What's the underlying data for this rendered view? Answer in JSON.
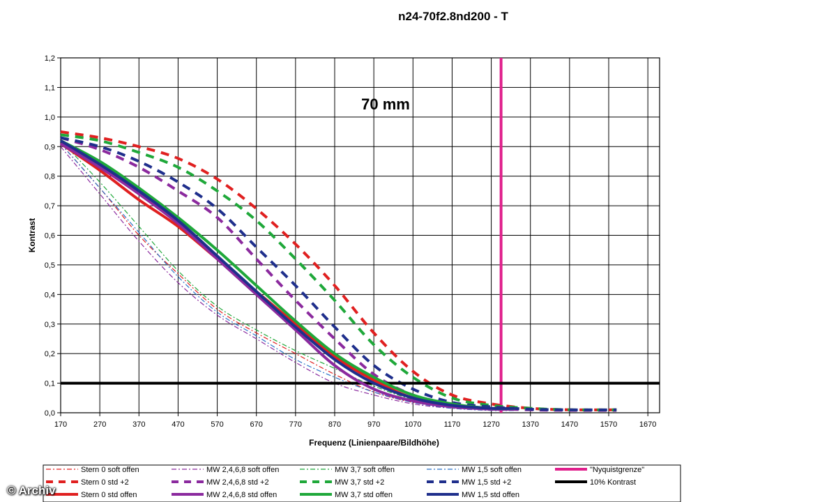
{
  "watermark": "© Archiv",
  "chart_data": {
    "type": "line",
    "title": "n24-70f2.8nd200 - T",
    "annotation": "70 mm",
    "xlabel": "Frequenz (Linienpaare/Bildhöhe)",
    "ylabel": "Kontrast",
    "xlim": [
      170,
      1700
    ],
    "ylim": [
      0,
      1.2
    ],
    "x_ticks": [
      "170",
      "270",
      "370",
      "470",
      "570",
      "670",
      "770",
      "870",
      "970",
      "1070",
      "1170",
      "1270",
      "1370",
      "1470",
      "1570",
      "1670"
    ],
    "y_ticks": [
      "0,0",
      "0,1",
      "0,2",
      "0,3",
      "0,4",
      "0,5",
      "0,6",
      "0,7",
      "0,8",
      "0,9",
      "1,0",
      "1,1",
      "1,2"
    ],
    "grid": true,
    "legend_position": "bottom",
    "series": [
      {
        "name": "Stern 0 soft offen",
        "color": "#e02020",
        "style": "dashdot",
        "width": 1.2,
        "x": [
          170,
          270,
          370,
          470,
          570,
          670,
          770,
          870,
          970,
          1070,
          1170,
          1270,
          1330
        ],
        "y": [
          0.91,
          0.76,
          0.6,
          0.47,
          0.35,
          0.27,
          0.2,
          0.13,
          0.07,
          0.035,
          0.02,
          0.01,
          0.01
        ]
      },
      {
        "name": "MW 2,4,6,8 soft offen",
        "color": "#8b2a9e",
        "style": "dashdot",
        "width": 1.2,
        "x": [
          170,
          270,
          370,
          470,
          570,
          670,
          770,
          870,
          970,
          1070,
          1170,
          1270,
          1330
        ],
        "y": [
          0.9,
          0.74,
          0.58,
          0.44,
          0.33,
          0.25,
          0.17,
          0.1,
          0.06,
          0.03,
          0.015,
          0.008,
          0.008
        ]
      },
      {
        "name": "MW 3,7 soft offen",
        "color": "#1fa83a",
        "style": "dashdot",
        "width": 1.2,
        "x": [
          170,
          270,
          370,
          470,
          570,
          670,
          770,
          870,
          970,
          1070,
          1170,
          1270,
          1330
        ],
        "y": [
          0.92,
          0.78,
          0.63,
          0.48,
          0.36,
          0.28,
          0.21,
          0.15,
          0.09,
          0.045,
          0.02,
          0.01,
          0.01
        ]
      },
      {
        "name": "MW 1,5 soft offen",
        "color": "#2a72c8",
        "style": "dashdot",
        "width": 1.2,
        "x": [
          170,
          270,
          370,
          470,
          570,
          670,
          770,
          870,
          970,
          1070,
          1170,
          1270,
          1330
        ],
        "y": [
          0.91,
          0.76,
          0.61,
          0.46,
          0.34,
          0.26,
          0.18,
          0.12,
          0.07,
          0.035,
          0.015,
          0.008,
          0.008
        ]
      },
      {
        "name": "\"Nyquistgrenze\"",
        "color": "#e0208c",
        "style": "nyquist",
        "width": 4,
        "x": [
          1295
        ],
        "y": [
          1.2
        ]
      },
      {
        "name": "Stern 0 std +2",
        "color": "#e02020",
        "style": "dash",
        "width": 4,
        "x": [
          170,
          270,
          370,
          470,
          570,
          670,
          770,
          870,
          970,
          1070,
          1170,
          1270,
          1370,
          1470,
          1590
        ],
        "y": [
          0.95,
          0.93,
          0.9,
          0.86,
          0.79,
          0.69,
          0.57,
          0.43,
          0.27,
          0.14,
          0.06,
          0.03,
          0.015,
          0.01,
          0.01
        ]
      },
      {
        "name": "MW 2,4,6,8 std +2",
        "color": "#8b2a9e",
        "style": "dash",
        "width": 4,
        "x": [
          170,
          270,
          370,
          470,
          570,
          670,
          770,
          870,
          970,
          1070,
          1170,
          1270,
          1370,
          1470,
          1590
        ],
        "y": [
          0.93,
          0.89,
          0.83,
          0.75,
          0.66,
          0.52,
          0.38,
          0.25,
          0.13,
          0.06,
          0.03,
          0.015,
          0.01,
          0.008,
          0.008
        ]
      },
      {
        "name": "MW 3,7 std +2",
        "color": "#1fa83a",
        "style": "dash",
        "width": 4,
        "x": [
          170,
          270,
          370,
          470,
          570,
          670,
          770,
          870,
          970,
          1070,
          1170,
          1270,
          1370,
          1470,
          1590
        ],
        "y": [
          0.94,
          0.92,
          0.88,
          0.83,
          0.75,
          0.65,
          0.52,
          0.38,
          0.23,
          0.12,
          0.05,
          0.025,
          0.015,
          0.01,
          0.01
        ]
      },
      {
        "name": "MW 1,5 std +2",
        "color": "#1f2f8c",
        "style": "dash",
        "width": 4,
        "x": [
          170,
          270,
          370,
          470,
          570,
          670,
          770,
          870,
          970,
          1070,
          1170,
          1270,
          1370,
          1470,
          1590
        ],
        "y": [
          0.93,
          0.9,
          0.85,
          0.78,
          0.69,
          0.56,
          0.43,
          0.29,
          0.16,
          0.08,
          0.035,
          0.02,
          0.012,
          0.01,
          0.01
        ]
      },
      {
        "name": "10% Kontrast",
        "color": "#000000",
        "style": "hline",
        "width": 4,
        "x": [
          170,
          1700
        ],
        "y": [
          0.1,
          0.1
        ]
      },
      {
        "name": "Stern 0 std offen",
        "color": "#e02020",
        "style": "solid",
        "width": 4,
        "x": [
          170,
          270,
          370,
          470,
          570,
          670,
          770,
          870,
          970,
          1070,
          1170,
          1270,
          1330
        ],
        "y": [
          0.91,
          0.82,
          0.72,
          0.63,
          0.52,
          0.41,
          0.3,
          0.19,
          0.11,
          0.05,
          0.025,
          0.015,
          0.015
        ]
      },
      {
        "name": "MW 2,4,6,8 std offen",
        "color": "#8b2a9e",
        "style": "solid",
        "width": 4,
        "x": [
          170,
          270,
          370,
          470,
          570,
          670,
          770,
          870,
          970,
          1070,
          1170,
          1270,
          1330
        ],
        "y": [
          0.91,
          0.83,
          0.74,
          0.64,
          0.52,
          0.4,
          0.28,
          0.16,
          0.08,
          0.04,
          0.02,
          0.012,
          0.012
        ]
      },
      {
        "name": "MW 3,7 std offen",
        "color": "#1fa83a",
        "style": "solid",
        "width": 4,
        "x": [
          170,
          270,
          370,
          470,
          570,
          670,
          770,
          870,
          970,
          1070,
          1170,
          1270,
          1330
        ],
        "y": [
          0.92,
          0.85,
          0.76,
          0.66,
          0.55,
          0.43,
          0.31,
          0.2,
          0.12,
          0.06,
          0.03,
          0.015,
          0.015
        ]
      },
      {
        "name": "MW 1,5 std offen",
        "color": "#1f2f8c",
        "style": "solid",
        "width": 4,
        "x": [
          170,
          270,
          370,
          470,
          570,
          670,
          770,
          870,
          970,
          1070,
          1170,
          1270,
          1330
        ],
        "y": [
          0.92,
          0.84,
          0.75,
          0.65,
          0.53,
          0.41,
          0.29,
          0.18,
          0.1,
          0.05,
          0.025,
          0.015,
          0.015
        ]
      }
    ]
  }
}
